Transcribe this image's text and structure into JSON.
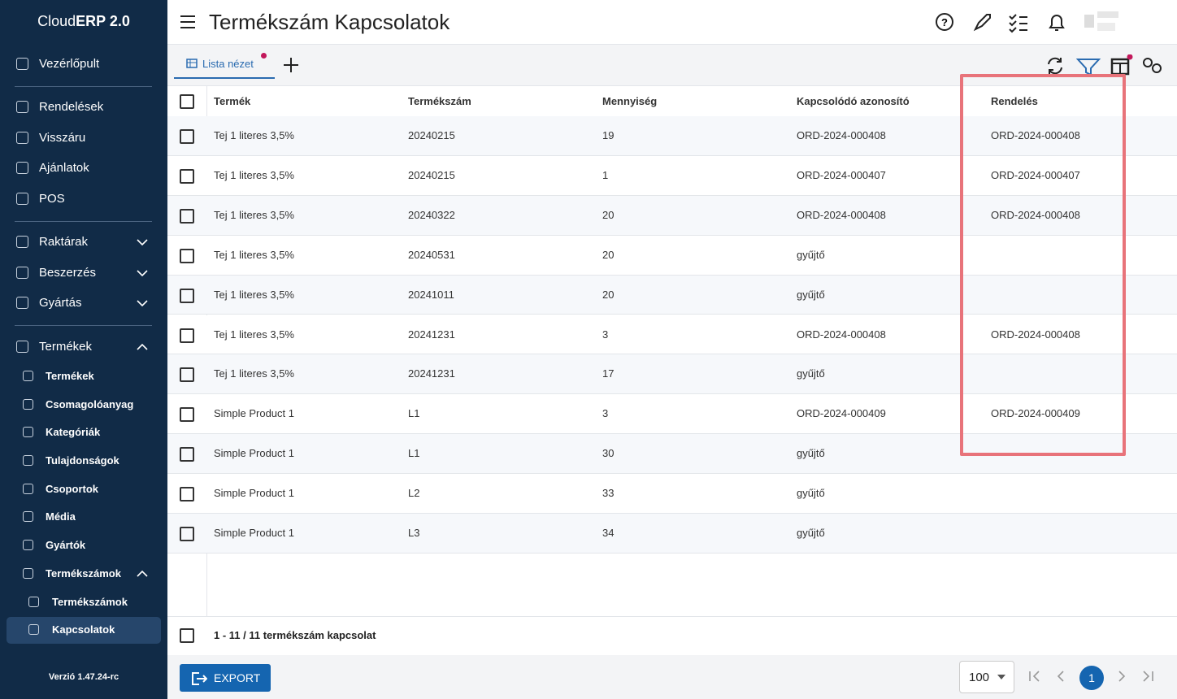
{
  "sidebar": {
    "brand": {
      "light": "Cloud",
      "bold": "ERP 2.0"
    },
    "menu": [
      "Vezérlőpult",
      "Rendelések",
      "Visszáru",
      "Ajánlatok",
      "POS",
      "Raktárak",
      "Beszerzés",
      "Gyártás",
      "Termékek"
    ],
    "products_submenu": [
      "Termékek",
      "Csomagolóanyag",
      "Kategóriák",
      "Tulajdonságok",
      "Csoportok",
      "Média",
      "Gyártók",
      "Termékszámok"
    ],
    "part_numbers_submenu": [
      "Termékszámok",
      "Kapcsolatok"
    ],
    "version": "Verzió 1.47.24-rc"
  },
  "header": {
    "title": "Termékszám Kapcsolatok"
  },
  "tabs": {
    "list_view": "Lista nézet"
  },
  "table": {
    "columns": [
      "Termék",
      "Termékszám",
      "Mennyiség",
      "Kapcsolódó azonosító",
      "Rendelés"
    ],
    "rows": [
      [
        "Tej 1 literes 3,5%",
        "20240215",
        19,
        "ORD-2024-000408",
        "ORD-2024-000408"
      ],
      [
        "Tej 1 literes 3,5%",
        "20240215",
        1,
        "ORD-2024-000407",
        "ORD-2024-000407"
      ],
      [
        "Tej 1 literes 3,5%",
        "20240322",
        20,
        "ORD-2024-000408",
        "ORD-2024-000408"
      ],
      [
        "Tej 1 literes 3,5%",
        "20240531",
        20,
        "gyűjtő",
        null
      ],
      [
        "Tej 1 literes 3,5%",
        "20241011",
        20,
        "gyűjtő",
        null
      ],
      [
        "Tej 1 literes 3,5%",
        "20241231",
        3,
        "ORD-2024-000408",
        "ORD-2024-000408"
      ],
      [
        "Tej 1 literes 3,5%",
        "20241231",
        17,
        "gyűjtő",
        null
      ],
      [
        "Simple Product 1",
        "L1",
        3,
        "ORD-2024-000409",
        "ORD-2024-000409"
      ],
      [
        "Simple Product 1",
        "L1",
        30,
        "gyűjtő",
        null
      ],
      [
        "Simple Product 1",
        "L2",
        33,
        "gyűjtő",
        null
      ],
      [
        "Simple Product 1",
        "L3",
        34,
        "gyűjtő",
        null
      ]
    ]
  },
  "footer": {
    "summary": "1 - 11 / 11 termékszám kapcsolat",
    "export": "EXPORT",
    "page_size": 100,
    "current_page": 1
  }
}
